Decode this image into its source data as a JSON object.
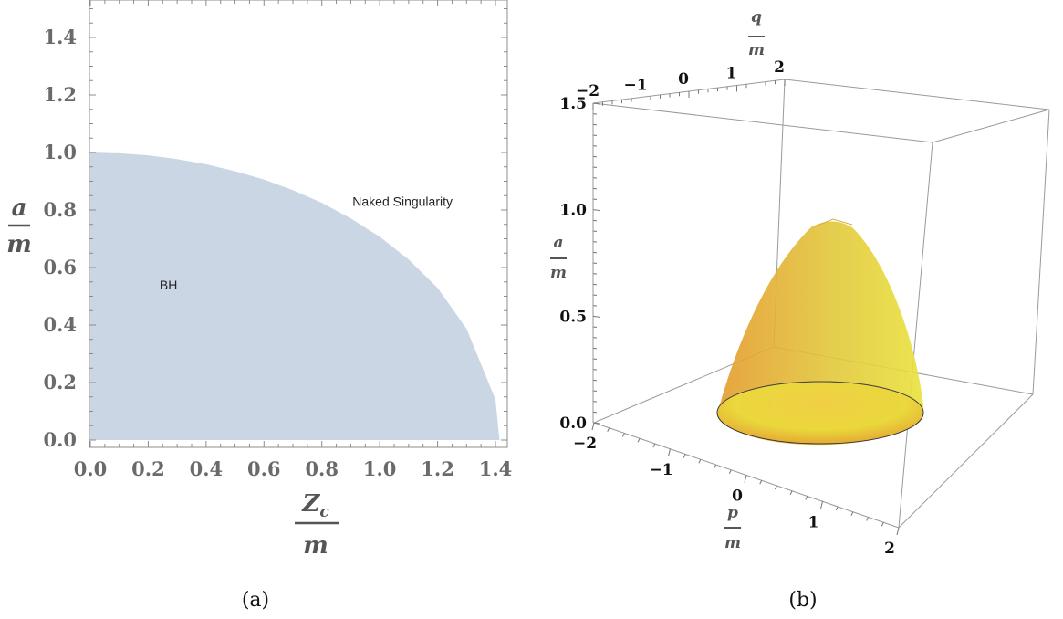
{
  "chart_data": [
    {
      "type": "area",
      "panel_caption": "(a)",
      "x": [
        0.0,
        0.1,
        0.2,
        0.3,
        0.4,
        0.5,
        0.6,
        0.7,
        0.8,
        0.9,
        1.0,
        1.1,
        1.2,
        1.3,
        1.4,
        1.414
      ],
      "y": [
        1.0,
        0.997,
        0.99,
        0.977,
        0.959,
        0.935,
        0.906,
        0.869,
        0.825,
        0.771,
        0.707,
        0.628,
        0.529,
        0.387,
        0.141,
        0.0
      ],
      "xlim": [
        0.0,
        1.5
      ],
      "ylim": [
        0.0,
        1.5
      ],
      "xticks": [
        "0.0",
        "0.2",
        "0.4",
        "0.6",
        "0.8",
        "1.0",
        "1.2",
        "1.4"
      ],
      "yticks": [
        "0.0",
        "0.2",
        "0.4",
        "0.6",
        "0.8",
        "1.0",
        "1.2",
        "1.4"
      ],
      "xlabel": {
        "numerator": "Zc",
        "numerator_main": "Z",
        "numerator_sub": "c",
        "denominator": "m"
      },
      "ylabel": {
        "numerator": "a",
        "denominator": "m"
      },
      "annotations": [
        {
          "text": "BH",
          "x": 0.27,
          "y": 0.54
        },
        {
          "text": "Naked Singularity",
          "x": 1.0,
          "y": 0.83
        }
      ],
      "fill_color": "#cbd6e4",
      "grid": false
    },
    {
      "type": "surface3d",
      "panel_caption": "(b)",
      "surface": "cone-like cap over disk p² + q² ≤ 2, a ≤ sqrt(1 - (p² + q²)/2)",
      "radius": 1.414,
      "apex": 1.0,
      "p_ticks": [
        "−2",
        "−1",
        "0",
        "1",
        "2"
      ],
      "q_ticks": [
        "−2",
        "−1",
        "0",
        "1",
        "2"
      ],
      "a_ticks": [
        "0.0",
        "0.5",
        "1.0",
        "1.5"
      ],
      "plim": [
        -2,
        2
      ],
      "qlim": [
        -2,
        2
      ],
      "alim": [
        0.0,
        1.5
      ],
      "p_label": {
        "numerator": "p",
        "denominator": "m"
      },
      "q_label": {
        "numerator": "q",
        "denominator": "m"
      },
      "a_label": {
        "numerator": "a",
        "denominator": "m"
      },
      "surface_colors": [
        "#e0a030",
        "#e8d83a"
      ]
    }
  ]
}
